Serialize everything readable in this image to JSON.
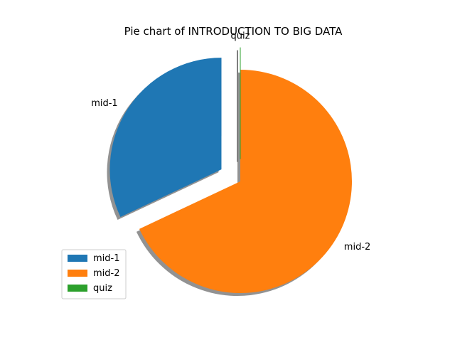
{
  "chart_data": {
    "type": "pie",
    "title": "Pie chart of INTRODUCTION TO BIG DATA",
    "categories": [
      "mid-1",
      "mid-2",
      "quiz"
    ],
    "values": [
      32,
      68,
      0
    ],
    "explode": [
      0.2,
      0,
      0.2
    ],
    "start_angle_deg": 90,
    "shadow": true,
    "legend_placement": "lower-left"
  },
  "colors": {
    "mid-1": "#1f77b4",
    "mid-2": "#ff7f0e",
    "quiz": "#2ca02c",
    "shadow": "#7f7f7f"
  }
}
